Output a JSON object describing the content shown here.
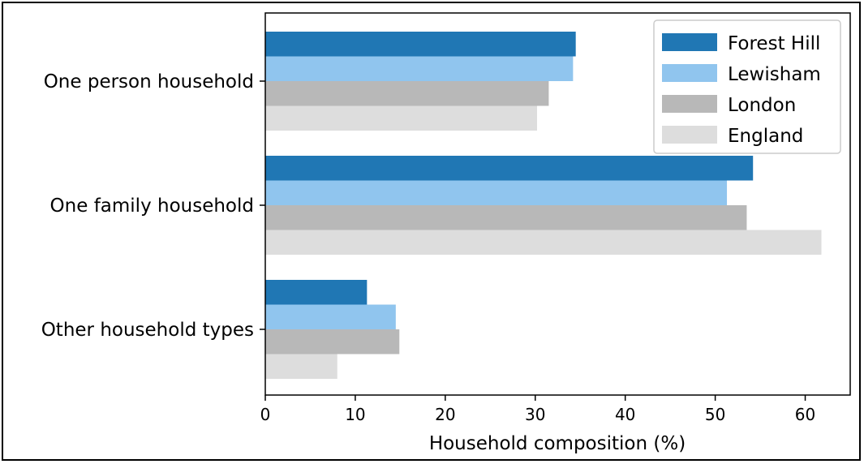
{
  "chart_data": {
    "type": "bar",
    "orientation": "horizontal",
    "categories": [
      "One person household",
      "One family household",
      "Other household types"
    ],
    "series": [
      {
        "name": "Forest Hill",
        "color": "#2077b4",
        "values": [
          34.5,
          54.2,
          11.3
        ]
      },
      {
        "name": "Lewisham",
        "color": "#90c5ee",
        "values": [
          34.2,
          51.3,
          14.5
        ]
      },
      {
        "name": "London",
        "color": "#b8b8b8",
        "values": [
          31.5,
          53.5,
          14.9
        ]
      },
      {
        "name": "England",
        "color": "#dddddd",
        "values": [
          30.2,
          61.8,
          8.0
        ]
      }
    ],
    "xlabel": "Household composition (%)",
    "ylabel": "",
    "xlim": [
      0,
      65
    ],
    "xticks": [
      "0",
      "10",
      "20",
      "30",
      "40",
      "50",
      "60"
    ],
    "legend": "top-right",
    "grid": false
  }
}
